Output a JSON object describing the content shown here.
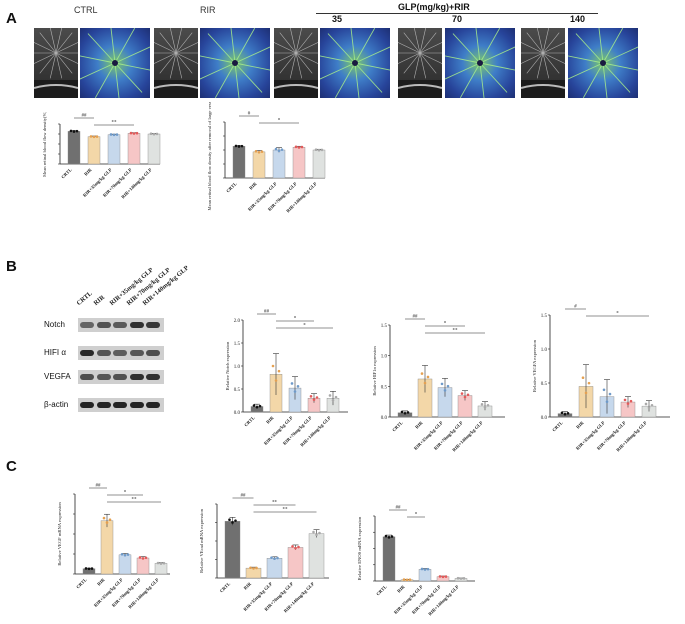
{
  "panels": {
    "a": "A",
    "b": "B",
    "c": "C"
  },
  "panel_a": {
    "headers": {
      "ctrl": "CTRL",
      "rir": "RIR",
      "glp": "GLP(mg/kg)+RIR",
      "doses": [
        "35",
        "70",
        "140"
      ]
    }
  },
  "panel_b": {
    "lane_labels": [
      "CRTL",
      "RIR",
      "RIR+35mg/kg GLP",
      "RIR+70mg/kg GLP",
      "RIR+140mg/kg GLP"
    ],
    "blot_labels": [
      "Notch",
      "HIFI α",
      "VEGFA",
      "β-actin"
    ]
  },
  "colors": {
    "ctrl": "#707070",
    "rir": "#f3d7a8",
    "d35": "#c6d8ec",
    "d70": "#f6c6c6",
    "d140": "#dfe2e0",
    "dots_ctrl": "#111111",
    "dots_rir": "#e5a050",
    "dots_d35": "#6f9ac9",
    "dots_d70": "#e35a5a",
    "dots_d140": "#aaaaaa"
  },
  "chart_data": [
    {
      "id": "a1",
      "type": "bar",
      "ylabel": "Mean retinal blood flow density(%)",
      "categories": [
        "CRTL",
        "RIR",
        "RIR+35mg/kg GLP",
        "RIR+70mg/kg GLP",
        "RIR+140mg/kg GLP"
      ],
      "values": [
        49,
        41,
        44,
        46,
        45
      ],
      "errors": [
        1.5,
        1,
        0.8,
        1,
        1
      ],
      "ylim": [
        0,
        60
      ],
      "sig": [
        {
          "from": 0,
          "to": 1,
          "label": "##"
        },
        {
          "from": 1,
          "to": 3,
          "label": "**"
        }
      ]
    },
    {
      "id": "a2",
      "type": "bar",
      "ylabel": "Mean retinal blood flow density after removal of large vessels(%)",
      "categories": [
        "CRTL",
        "RIR",
        "RIR+35mg/kg GLP",
        "RIR+70mg/kg GLP",
        "RIR+140mg/kg GLP"
      ],
      "values": [
        34,
        28,
        30,
        33,
        30
      ],
      "errors": [
        1,
        1.5,
        2.5,
        1,
        0.8
      ],
      "ylim": [
        0,
        60
      ],
      "sig": [
        {
          "from": 0,
          "to": 1,
          "label": "#"
        },
        {
          "from": 1,
          "to": 3,
          "label": "*"
        }
      ]
    },
    {
      "id": "b1",
      "type": "bar",
      "ylabel": "Relative Notch expression",
      "categories": [
        "CRTL",
        "RIR",
        "RIR+35mg/kg GLP",
        "RIR+70mg/kg GLP",
        "RIR+140mg/kg GLP"
      ],
      "values": [
        0.12,
        0.82,
        0.52,
        0.3,
        0.3
      ],
      "errors": [
        0.05,
        0.45,
        0.25,
        0.1,
        0.15
      ],
      "ylim": [
        0,
        2.0
      ],
      "yticks": [
        0.0,
        0.5,
        1.0,
        1.5,
        2.0
      ],
      "sig": [
        {
          "from": 0,
          "to": 1,
          "label": "##"
        },
        {
          "from": 1,
          "to": 3,
          "label": "*"
        },
        {
          "from": 1,
          "to": 4,
          "label": "*"
        }
      ]
    },
    {
      "id": "b2",
      "type": "bar",
      "ylabel": "Relative HIF1α expression",
      "categories": [
        "CRTL",
        "RIR",
        "RIR+35mg/kg GLP",
        "RIR+70mg/kg GLP",
        "RIR+140mg/kg GLP"
      ],
      "values": [
        0.07,
        0.62,
        0.48,
        0.35,
        0.18
      ],
      "errors": [
        0.03,
        0.22,
        0.15,
        0.08,
        0.07
      ],
      "ylim": [
        0,
        1.5
      ],
      "yticks": [
        0.0,
        0.5,
        1.0,
        1.5
      ],
      "sig": [
        {
          "from": 0,
          "to": 1,
          "label": "##"
        },
        {
          "from": 1,
          "to": 3,
          "label": "*"
        },
        {
          "from": 1,
          "to": 4,
          "label": "**"
        }
      ]
    },
    {
      "id": "b3",
      "type": "bar",
      "ylabel": "Relative VEGFA expression",
      "categories": [
        "CRTL",
        "RIR",
        "RIR+35mg/kg GLP",
        "RIR+70mg/kg GLP",
        "RIR+140mg/kg GLP"
      ],
      "values": [
        0.05,
        0.45,
        0.3,
        0.22,
        0.16
      ],
      "errors": [
        0.03,
        0.32,
        0.25,
        0.08,
        0.08
      ],
      "ylim": [
        0,
        1.5
      ],
      "yticks": [
        0.0,
        0.5,
        1.0,
        1.5
      ],
      "sig": [
        {
          "from": 0,
          "to": 1,
          "label": "#"
        },
        {
          "from": 1,
          "to": 4,
          "label": "*"
        }
      ]
    },
    {
      "id": "c1",
      "type": "bar",
      "ylabel": "Relative VEGF mRNA expression",
      "categories": [
        "CRTL",
        "RIR",
        "RIR+35mg/kg GLP",
        "RIR+70mg/kg GLP",
        "RIR+140mg/kg GLP"
      ],
      "values": [
        1.0,
        10.0,
        3.6,
        3.0,
        2.0
      ],
      "errors": [
        0.1,
        1.2,
        0.25,
        0.25,
        0.15
      ],
      "ylim": [
        0,
        15
      ],
      "sig": [
        {
          "from": 0,
          "to": 1,
          "label": "##"
        },
        {
          "from": 1,
          "to": 3,
          "label": "*"
        },
        {
          "from": 1,
          "to": 4,
          "label": "**"
        }
      ]
    },
    {
      "id": "c2",
      "type": "bar",
      "ylabel": "Relative VEcad mRNA expression",
      "categories": [
        "CRTL",
        "RIR",
        "RIR+35mg/kg GLP",
        "RIR+70mg/kg GLP",
        "RIR+140mg/kg GLP"
      ],
      "values": [
        1.15,
        0.2,
        0.4,
        0.62,
        0.9
      ],
      "errors": [
        0.08,
        0.02,
        0.03,
        0.05,
        0.08
      ],
      "ylim": [
        0,
        1.5
      ],
      "sig": [
        {
          "from": 0,
          "to": 1,
          "label": "##"
        },
        {
          "from": 1,
          "to": 3,
          "label": "**"
        },
        {
          "from": 1,
          "to": 4,
          "label": "**"
        }
      ]
    },
    {
      "id": "c3",
      "type": "bar",
      "ylabel": "Relative ENOS mRNA expression",
      "categories": [
        "CRTL",
        "RIR",
        "RIR+35mg/kg GLP",
        "RIR+70mg/kg GLP",
        "RIR+140mg/kg GLP"
      ],
      "values": [
        1.02,
        0.03,
        0.27,
        0.1,
        0.06
      ],
      "errors": [
        0.04,
        0.01,
        0.02,
        0.015,
        0.01
      ],
      "ylim": [
        0,
        1.5
      ],
      "sig": [
        {
          "from": 0,
          "to": 1,
          "label": "##"
        },
        {
          "from": 1,
          "to": 2,
          "label": "*"
        }
      ]
    }
  ]
}
